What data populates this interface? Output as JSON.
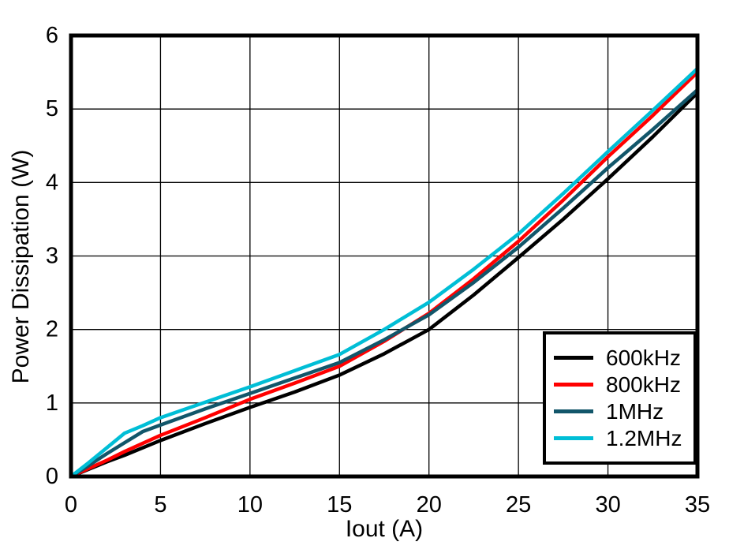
{
  "chart_data": {
    "type": "line",
    "xlabel": "Iout (A)",
    "ylabel": "Power Dissipation (W)",
    "xlim": [
      0,
      35
    ],
    "ylim": [
      0,
      6
    ],
    "x_ticks": [
      0,
      5,
      10,
      15,
      20,
      25,
      30,
      35
    ],
    "y_ticks": [
      0,
      1,
      2,
      3,
      4,
      5,
      6
    ],
    "grid": true,
    "legend_position": "lower right",
    "x": [
      0,
      1,
      2,
      3,
      4,
      5,
      7.5,
      10,
      12.5,
      15,
      17.5,
      20,
      22.5,
      25,
      27.5,
      30,
      32.5,
      35
    ],
    "series": [
      {
        "name": "600kHz",
        "color": "#000000",
        "values": [
          0,
          0.1,
          0.2,
          0.29,
          0.39,
          0.49,
          0.72,
          0.94,
          1.15,
          1.38,
          1.67,
          2.0,
          2.47,
          2.98,
          3.5,
          4.05,
          4.62,
          5.22
        ]
      },
      {
        "name": "800kHz",
        "color": "#FF0000",
        "values": [
          0,
          0.11,
          0.22,
          0.34,
          0.45,
          0.56,
          0.8,
          1.05,
          1.27,
          1.5,
          1.84,
          2.22,
          2.69,
          3.2,
          3.76,
          4.35,
          4.91,
          5.5
        ]
      },
      {
        "name": "1MHz",
        "color": "#12566A",
        "values": [
          0,
          0.15,
          0.31,
          0.46,
          0.61,
          0.7,
          0.92,
          1.13,
          1.34,
          1.55,
          1.86,
          2.2,
          2.64,
          3.12,
          3.65,
          4.2,
          4.72,
          5.26
        ]
      },
      {
        "name": "1.2MHz",
        "color": "#00BED6",
        "values": [
          0,
          0.19,
          0.39,
          0.59,
          0.69,
          0.8,
          1.01,
          1.22,
          1.44,
          1.66,
          2.0,
          2.37,
          2.82,
          3.3,
          3.85,
          4.42,
          4.98,
          5.55
        ]
      }
    ]
  },
  "colors": {
    "background": "#FFFFFF",
    "axis": "#000000",
    "grid": "#000000"
  }
}
